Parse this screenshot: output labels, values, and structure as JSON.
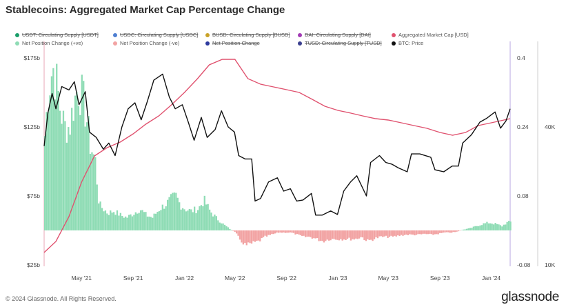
{
  "title": "Stablecoins: Aggregated Market Cap Percentage Change",
  "legend": [
    {
      "label": "USDT: Circulating Supply [USDT]",
      "color": "#1a9e6a",
      "hidden": true
    },
    {
      "label": "USDC: Circulating Supply [USDC]",
      "color": "#4f7fd1",
      "hidden": true
    },
    {
      "label": "BUSD: Circulating Supply [BUSD]",
      "color": "#c9a227",
      "hidden": true
    },
    {
      "label": "DAI: Circulating Supply [DAI]",
      "color": "#a33bb5",
      "hidden": true
    },
    {
      "label": "Aggregated Market Cap [USD]",
      "color": "#e0526f",
      "hidden": false
    },
    {
      "label": "Net Position Change (+ve)",
      "color": "#8fdcb5",
      "hidden": false
    },
    {
      "label": "Net Position Change (-ve)",
      "color": "#f2a3a3",
      "hidden": false
    },
    {
      "label": "Net Position Change",
      "color": "#2d3a9e",
      "hidden": true
    },
    {
      "label": "TUSD: Circulating Supply [TUSD]",
      "color": "#3a3f8f",
      "hidden": true
    },
    {
      "label": "BTC: Price",
      "color": "#111111",
      "hidden": false
    }
  ],
  "footer": "© 2024 Glassnode. All Rights Reserved.",
  "brand": "glassnode",
  "colors": {
    "positive": "#8fdcb5",
    "negative": "#f2a3a3",
    "mcap": "#e0526f",
    "btc": "#111111",
    "axis_line": "#b7a5e0"
  },
  "chart_data": {
    "type": "line",
    "x_tick_labels": [
      "May '21",
      "Sep '21",
      "Jan '22",
      "May '22",
      "Sep '22",
      "Jan '23",
      "May '23",
      "Sep '23",
      "Jan '24"
    ],
    "x_range": [
      "2021-02-01",
      "2024-02-15"
    ],
    "left_axis": {
      "ticks": [
        "$25b",
        "$75b",
        "$125b",
        "$175b"
      ],
      "range": [
        25,
        175
      ],
      "unit": "billion USD"
    },
    "mid_axis": {
      "ticks": [
        "-0.08",
        "0.08",
        "0.24",
        "0.4"
      ],
      "range": [
        -0.08,
        0.4
      ]
    },
    "right_axis": {
      "ticks": [
        "10K",
        "40K"
      ],
      "scale": "log",
      "range": [
        10000,
        80000
      ]
    },
    "series": [
      {
        "name": "Aggregated Market Cap [USD]",
        "axis": "left",
        "points": [
          [
            "2021-02-01",
            34
          ],
          [
            "2021-03-01",
            42
          ],
          [
            "2021-04-01",
            60
          ],
          [
            "2021-05-01",
            85
          ],
          [
            "2021-06-01",
            104
          ],
          [
            "2021-07-01",
            110
          ],
          [
            "2021-08-01",
            114
          ],
          [
            "2021-09-01",
            120
          ],
          [
            "2021-10-01",
            127
          ],
          [
            "2021-11-01",
            133
          ],
          [
            "2021-12-01",
            141
          ],
          [
            "2022-01-01",
            150
          ],
          [
            "2022-02-01",
            160
          ],
          [
            "2022-03-01",
            170
          ],
          [
            "2022-04-01",
            174
          ],
          [
            "2022-05-01",
            174
          ],
          [
            "2022-06-01",
            160
          ],
          [
            "2022-07-01",
            156
          ],
          [
            "2022-08-01",
            154
          ],
          [
            "2022-09-01",
            152
          ],
          [
            "2022-10-01",
            150
          ],
          [
            "2022-11-01",
            145
          ],
          [
            "2022-12-01",
            140
          ],
          [
            "2023-01-01",
            137
          ],
          [
            "2023-02-01",
            135
          ],
          [
            "2023-03-01",
            133
          ],
          [
            "2023-04-01",
            131
          ],
          [
            "2023-05-01",
            130
          ],
          [
            "2023-06-01",
            128
          ],
          [
            "2023-07-01",
            126
          ],
          [
            "2023-08-01",
            124
          ],
          [
            "2023-09-01",
            121
          ],
          [
            "2023-10-01",
            119
          ],
          [
            "2023-11-01",
            121
          ],
          [
            "2023-12-01",
            126
          ],
          [
            "2024-01-01",
            128
          ],
          [
            "2024-02-15",
            131
          ]
        ]
      },
      {
        "name": "BTC: Price",
        "axis": "right",
        "points": [
          [
            "2021-02-01",
            33000
          ],
          [
            "2021-02-10",
            46000
          ],
          [
            "2021-02-20",
            56000
          ],
          [
            "2021-03-01",
            48000
          ],
          [
            "2021-03-15",
            60000
          ],
          [
            "2021-04-01",
            58000
          ],
          [
            "2021-04-14",
            63000
          ],
          [
            "2021-04-25",
            50000
          ],
          [
            "2021-05-10",
            57000
          ],
          [
            "2021-05-20",
            38000
          ],
          [
            "2021-06-05",
            36000
          ],
          [
            "2021-06-22",
            32000
          ],
          [
            "2021-07-05",
            34000
          ],
          [
            "2021-07-20",
            30000
          ],
          [
            "2021-08-05",
            40000
          ],
          [
            "2021-08-20",
            48000
          ],
          [
            "2021-09-05",
            51000
          ],
          [
            "2021-09-20",
            43000
          ],
          [
            "2021-10-05",
            52000
          ],
          [
            "2021-10-20",
            64000
          ],
          [
            "2021-11-10",
            68000
          ],
          [
            "2021-11-26",
            54000
          ],
          [
            "2021-12-10",
            48000
          ],
          [
            "2021-12-27",
            50000
          ],
          [
            "2022-01-10",
            42000
          ],
          [
            "2022-01-24",
            35000
          ],
          [
            "2022-02-10",
            44000
          ],
          [
            "2022-02-24",
            36000
          ],
          [
            "2022-03-15",
            39000
          ],
          [
            "2022-03-30",
            47000
          ],
          [
            "2022-04-15",
            40000
          ],
          [
            "2022-04-30",
            38000
          ],
          [
            "2022-05-10",
            30000
          ],
          [
            "2022-05-25",
            29000
          ],
          [
            "2022-06-10",
            29000
          ],
          [
            "2022-06-18",
            19000
          ],
          [
            "2022-07-01",
            19500
          ],
          [
            "2022-07-20",
            23000
          ],
          [
            "2022-08-10",
            24000
          ],
          [
            "2022-08-25",
            21000
          ],
          [
            "2022-09-10",
            21500
          ],
          [
            "2022-09-25",
            19000
          ],
          [
            "2022-10-10",
            19200
          ],
          [
            "2022-10-30",
            20500
          ],
          [
            "2022-11-09",
            16500
          ],
          [
            "2022-11-25",
            16500
          ],
          [
            "2022-12-15",
            17200
          ],
          [
            "2022-12-31",
            16600
          ],
          [
            "2023-01-15",
            21000
          ],
          [
            "2023-01-31",
            23000
          ],
          [
            "2023-02-15",
            24500
          ],
          [
            "2023-03-10",
            20000
          ],
          [
            "2023-03-20",
            28000
          ],
          [
            "2023-04-10",
            30000
          ],
          [
            "2023-04-25",
            28000
          ],
          [
            "2023-05-10",
            27500
          ],
          [
            "2023-05-25",
            26500
          ],
          [
            "2023-06-15",
            25500
          ],
          [
            "2023-06-25",
            30500
          ],
          [
            "2023-07-15",
            30500
          ],
          [
            "2023-08-10",
            29500
          ],
          [
            "2023-08-20",
            26000
          ],
          [
            "2023-09-10",
            25500
          ],
          [
            "2023-09-30",
            27000
          ],
          [
            "2023-10-15",
            27000
          ],
          [
            "2023-10-25",
            34000
          ],
          [
            "2023-11-15",
            37000
          ],
          [
            "2023-12-05",
            42000
          ],
          [
            "2023-12-20",
            43500
          ],
          [
            "2024-01-10",
            46500
          ],
          [
            "2024-01-23",
            39500
          ],
          [
            "2024-02-05",
            42500
          ],
          [
            "2024-02-15",
            48000
          ]
        ]
      },
      {
        "name": "Net Position Change",
        "axis": "mid",
        "points": [
          [
            "2021-02-01",
            0.22
          ],
          [
            "2021-02-10",
            0.33
          ],
          [
            "2021-02-20",
            0.38
          ],
          [
            "2021-03-01",
            0.34
          ],
          [
            "2021-03-10",
            0.28
          ],
          [
            "2021-03-20",
            0.24
          ],
          [
            "2021-04-01",
            0.24
          ],
          [
            "2021-04-10",
            0.29
          ],
          [
            "2021-04-20",
            0.33
          ],
          [
            "2021-05-01",
            0.31
          ],
          [
            "2021-05-10",
            0.27
          ],
          [
            "2021-05-20",
            0.2
          ],
          [
            "2021-06-01",
            0.16
          ],
          [
            "2021-06-10",
            0.06
          ],
          [
            "2021-06-20",
            0.05
          ],
          [
            "2021-07-01",
            0.04
          ],
          [
            "2021-07-15",
            0.045
          ],
          [
            "2021-08-01",
            0.035
          ],
          [
            "2021-08-15",
            0.03
          ],
          [
            "2021-09-01",
            0.04
          ],
          [
            "2021-09-15",
            0.05
          ],
          [
            "2021-10-01",
            0.035
          ],
          [
            "2021-10-15",
            0.03
          ],
          [
            "2021-11-01",
            0.05
          ],
          [
            "2021-11-15",
            0.06
          ],
          [
            "2021-12-01",
            0.075
          ],
          [
            "2021-12-10",
            0.08
          ],
          [
            "2021-12-20",
            0.06
          ],
          [
            "2022-01-01",
            0.05
          ],
          [
            "2022-01-15",
            0.045
          ],
          [
            "2022-02-01",
            0.05
          ],
          [
            "2022-02-15",
            0.07
          ],
          [
            "2022-03-01",
            0.045
          ],
          [
            "2022-03-15",
            0.03
          ],
          [
            "2022-04-01",
            0.015
          ],
          [
            "2022-04-15",
            0.005
          ],
          [
            "2022-05-01",
            -0.005
          ],
          [
            "2022-05-10",
            -0.02
          ],
          [
            "2022-05-25",
            -0.035
          ],
          [
            "2022-06-10",
            -0.03
          ],
          [
            "2022-06-25",
            -0.025
          ],
          [
            "2022-07-10",
            -0.015
          ],
          [
            "2022-07-25",
            -0.01
          ],
          [
            "2022-08-10",
            -0.005
          ],
          [
            "2022-08-25",
            -0.005
          ],
          [
            "2022-09-10",
            -0.005
          ],
          [
            "2022-09-25",
            -0.01
          ],
          [
            "2022-10-10",
            -0.015
          ],
          [
            "2022-10-25",
            -0.015
          ],
          [
            "2022-11-10",
            -0.02
          ],
          [
            "2022-11-25",
            -0.025
          ],
          [
            "2022-12-10",
            -0.02
          ],
          [
            "2022-12-25",
            -0.02
          ],
          [
            "2023-01-10",
            -0.02
          ],
          [
            "2023-01-25",
            -0.02
          ],
          [
            "2023-02-10",
            -0.02
          ],
          [
            "2023-02-25",
            -0.015
          ],
          [
            "2023-03-10",
            -0.025
          ],
          [
            "2023-03-25",
            -0.02
          ],
          [
            "2023-04-10",
            -0.015
          ],
          [
            "2023-04-25",
            -0.015
          ],
          [
            "2023-05-10",
            -0.015
          ],
          [
            "2023-05-25",
            -0.012
          ],
          [
            "2023-06-10",
            -0.01
          ],
          [
            "2023-06-25",
            -0.01
          ],
          [
            "2023-07-10",
            -0.01
          ],
          [
            "2023-07-25",
            -0.008
          ],
          [
            "2023-08-10",
            -0.01
          ],
          [
            "2023-08-25",
            -0.008
          ],
          [
            "2023-09-10",
            -0.005
          ],
          [
            "2023-09-25",
            -0.005
          ],
          [
            "2023-10-10",
            -0.003
          ],
          [
            "2023-10-25",
            0.002
          ],
          [
            "2023-11-10",
            0.005
          ],
          [
            "2023-11-25",
            0.01
          ],
          [
            "2023-12-10",
            0.015
          ],
          [
            "2023-12-25",
            0.018
          ],
          [
            "2024-01-10",
            0.015
          ],
          [
            "2024-01-25",
            0.01
          ],
          [
            "2024-02-05",
            0.018
          ],
          [
            "2024-02-15",
            0.02
          ]
        ]
      }
    ]
  }
}
